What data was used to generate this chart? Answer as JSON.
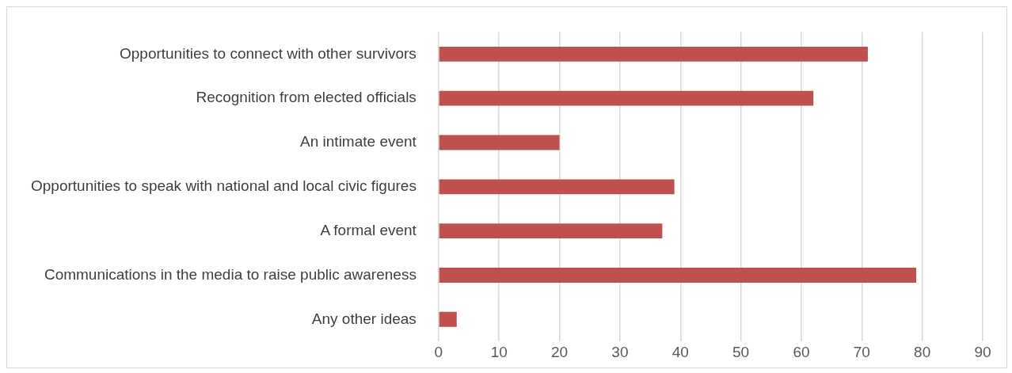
{
  "chart_data": {
    "type": "bar",
    "orientation": "horizontal",
    "categories": [
      "Opportunities to connect with other survivors",
      "Recognition from elected officials",
      "An intimate event",
      "Opportunities to speak with national and local civic figures",
      "A formal event",
      "Communications in the media to raise public awareness",
      "Any other ideas"
    ],
    "values": [
      71,
      62,
      20,
      39,
      37,
      79,
      3
    ],
    "color": "#c0504d",
    "xlim": [
      0,
      90
    ],
    "xticks": [
      0,
      10,
      20,
      30,
      40,
      50,
      60,
      70,
      80,
      90
    ],
    "grid": "x",
    "legend": false
  }
}
